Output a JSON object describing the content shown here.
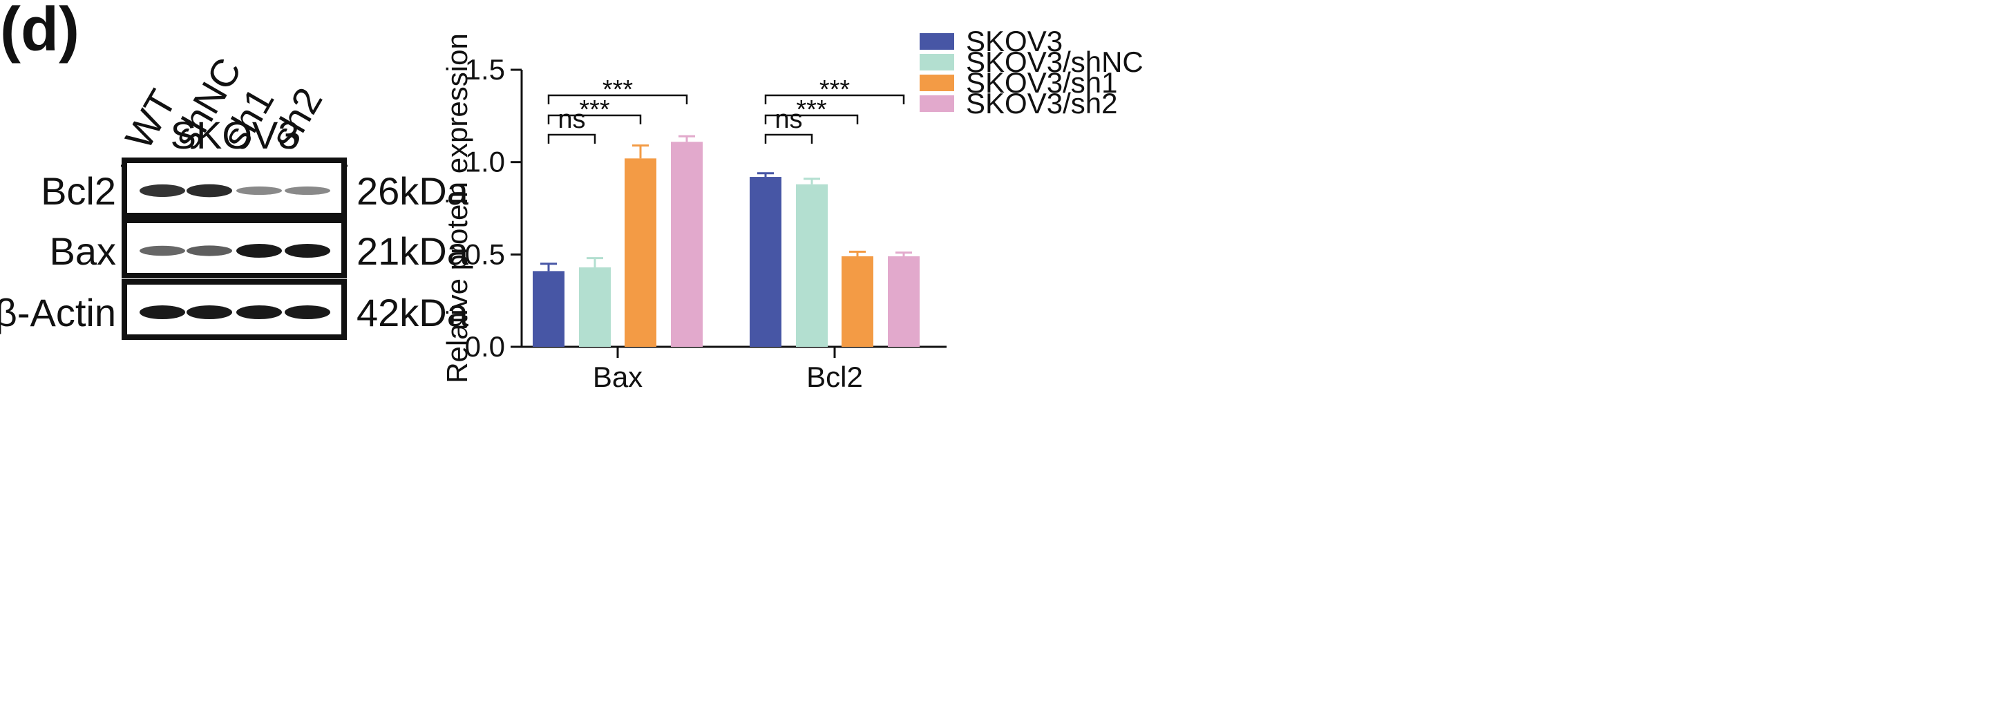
{
  "panel_label": "(d)",
  "blot": {
    "cell_line": "SKOV3",
    "lanes": [
      "WT",
      "shNC",
      "sh1",
      "sh2"
    ],
    "rows": [
      {
        "protein": "Bcl2",
        "mw": "26kDa",
        "intensity": [
          0.85,
          0.9,
          0.35,
          0.35
        ]
      },
      {
        "protein": "Bax",
        "mw": "21kDa",
        "intensity": [
          0.55,
          0.6,
          1.0,
          1.0
        ]
      },
      {
        "protein": "β-Actin",
        "mw": "42kDa",
        "intensity": [
          1.0,
          1.0,
          1.0,
          1.0
        ]
      }
    ]
  },
  "chart_data": {
    "type": "bar",
    "ylabel": "Relative protein expression",
    "xlabel": "",
    "ylim": [
      0,
      1.5
    ],
    "yticks": [
      "0.0",
      "0.5",
      "1.0",
      "1.5"
    ],
    "categories": [
      "Bax",
      "Bcl2"
    ],
    "series": [
      {
        "name": "SKOV3",
        "color": "#4756a5",
        "values": [
          0.41,
          0.92
        ],
        "errors": [
          0.04,
          0.02
        ]
      },
      {
        "name": "SKOV3/shNC",
        "color": "#b3dfd0",
        "values": [
          0.43,
          0.88
        ],
        "errors": [
          0.05,
          0.03
        ]
      },
      {
        "name": "SKOV3/sh1",
        "color": "#f39b45",
        "values": [
          1.02,
          0.49
        ],
        "errors": [
          0.07,
          0.025
        ]
      },
      {
        "name": "SKOV3/sh2",
        "color": "#e2a9cc",
        "values": [
          1.11,
          0.49
        ],
        "errors": [
          0.03,
          0.02
        ]
      }
    ],
    "legend_position": "top-right",
    "significance": [
      {
        "category": 0,
        "from": 0,
        "to": 1,
        "label": "ns"
      },
      {
        "category": 0,
        "from": 0,
        "to": 2,
        "label": "***"
      },
      {
        "category": 0,
        "from": 0,
        "to": 3,
        "label": "***"
      },
      {
        "category": 1,
        "from": 0,
        "to": 1,
        "label": "ns"
      },
      {
        "category": 1,
        "from": 0,
        "to": 2,
        "label": "***"
      },
      {
        "category": 1,
        "from": 0,
        "to": 3,
        "label": "***"
      }
    ]
  }
}
